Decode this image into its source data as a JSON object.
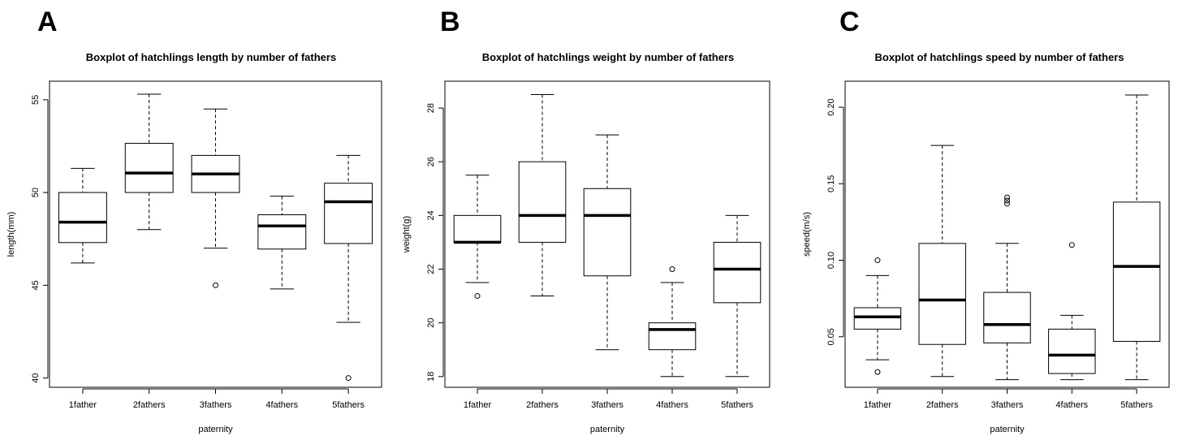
{
  "chart_data": [
    {
      "type": "boxplot",
      "panel": "A",
      "title": "Boxplot of hatchlings length by number of fathers",
      "xlabel": "paternity",
      "ylabel": "length(mm)",
      "ylim": [
        39.5,
        56
      ],
      "yticks": [
        40,
        45,
        50,
        55
      ],
      "categories": [
        "1father",
        "2fathers",
        "3fathers",
        "4fathers",
        "5fathers"
      ],
      "boxes": [
        {
          "whisker_low": 46.2,
          "q1": 47.3,
          "median": 48.4,
          "q3": 50.0,
          "whisker_high": 51.3,
          "outliers": []
        },
        {
          "whisker_low": 48.0,
          "q1": 50.0,
          "median": 51.05,
          "q3": 52.65,
          "whisker_high": 55.3,
          "outliers": []
        },
        {
          "whisker_low": 47.0,
          "q1": 50.0,
          "median": 51.0,
          "q3": 52.0,
          "whisker_high": 54.5,
          "outliers": [
            45.0
          ]
        },
        {
          "whisker_low": 44.8,
          "q1": 46.95,
          "median": 48.2,
          "q3": 48.8,
          "whisker_high": 49.8,
          "outliers": []
        },
        {
          "whisker_low": 43.0,
          "q1": 47.25,
          "median": 49.5,
          "q3": 50.5,
          "whisker_high": 52.0,
          "outliers": [
            40.0
          ]
        }
      ]
    },
    {
      "type": "boxplot",
      "panel": "B",
      "title": "Boxplot of hatchlings weight by number of fathers",
      "xlabel": "paternity",
      "ylabel": "weight(g)",
      "ylim": [
        17.6,
        29.0
      ],
      "yticks": [
        18,
        20,
        22,
        24,
        26,
        28
      ],
      "categories": [
        "1father",
        "2fathers",
        "3fathers",
        "4fathers",
        "5fathers"
      ],
      "boxes": [
        {
          "whisker_low": 21.5,
          "q1": 23.0,
          "median": 23.0,
          "q3": 24.0,
          "whisker_high": 25.5,
          "outliers": [
            21.0
          ]
        },
        {
          "whisker_low": 21.0,
          "q1": 23.0,
          "median": 24.0,
          "q3": 26.0,
          "whisker_high": 28.5,
          "outliers": []
        },
        {
          "whisker_low": 19.0,
          "q1": 21.75,
          "median": 24.0,
          "q3": 25.0,
          "whisker_high": 27.0,
          "outliers": []
        },
        {
          "whisker_low": 18.0,
          "q1": 19.0,
          "median": 19.75,
          "q3": 20.0,
          "whisker_high": 21.5,
          "outliers": [
            22.0
          ]
        },
        {
          "whisker_low": 18.0,
          "q1": 20.75,
          "median": 22.0,
          "q3": 23.0,
          "whisker_high": 24.0,
          "outliers": []
        }
      ]
    },
    {
      "type": "boxplot",
      "panel": "C",
      "title": "Boxplot of hatchlings speed by number of fathers",
      "xlabel": "paternity",
      "ylabel": "speed(m/s)",
      "ylim": [
        0.017,
        0.217
      ],
      "yticks": [
        0.05,
        0.1,
        0.15,
        0.2
      ],
      "yticklabels": [
        "0.05",
        "0.10",
        "0.15",
        "0.20"
      ],
      "categories": [
        "1father",
        "2fathers",
        "3fathers",
        "4fathers",
        "5fathers"
      ],
      "boxes": [
        {
          "whisker_low": 0.035,
          "q1": 0.055,
          "median": 0.063,
          "q3": 0.069,
          "whisker_high": 0.09,
          "outliers": [
            0.1,
            0.027
          ]
        },
        {
          "whisker_low": 0.024,
          "q1": 0.045,
          "median": 0.074,
          "q3": 0.111,
          "whisker_high": 0.175,
          "outliers": []
        },
        {
          "whisker_low": 0.022,
          "q1": 0.046,
          "median": 0.058,
          "q3": 0.079,
          "whisker_high": 0.111,
          "outliers": [
            0.137,
            0.139,
            0.141
          ]
        },
        {
          "whisker_low": 0.022,
          "q1": 0.026,
          "median": 0.038,
          "q3": 0.055,
          "whisker_high": 0.064,
          "outliers": [
            0.11
          ]
        },
        {
          "whisker_low": 0.022,
          "q1": 0.047,
          "median": 0.096,
          "q3": 0.138,
          "whisker_high": 0.208,
          "outliers": []
        }
      ]
    }
  ]
}
